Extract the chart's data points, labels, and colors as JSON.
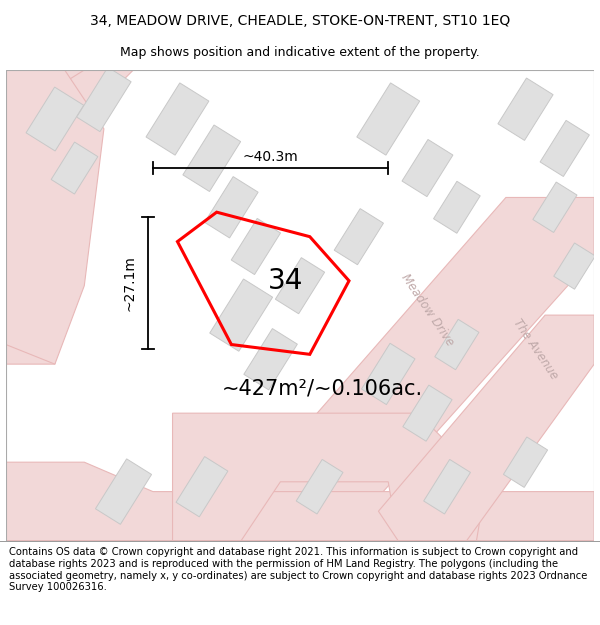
{
  "title_line1": "34, MEADOW DRIVE, CHEADLE, STOKE-ON-TRENT, ST10 1EQ",
  "title_line2": "Map shows position and indicative extent of the property.",
  "area_text": "~427m²/~0.106ac.",
  "label_34": "34",
  "dim_width": "~40.3m",
  "dim_height": "~27.1m",
  "street_meadow": "Meadow Drive",
  "street_avenue": "The Avenue",
  "footer_text": "Contains OS data © Crown copyright and database right 2021. This information is subject to Crown copyright and database rights 2023 and is reproduced with the permission of HM Land Registry. The polygons (including the associated geometry, namely x, y co-ordinates) are subject to Crown copyright and database rights 2023 Ordnance Survey 100026316.",
  "map_bg": "#ffffff",
  "road_fill": "#f5dada",
  "road_edge": "#e8b8b8",
  "building_fill": "#e0e0e0",
  "building_edge": "#c8c8c8",
  "plot_edge": "#ff0000",
  "dim_color": "#000000",
  "street_color": "#c0aaaa",
  "title_fontsize": 10,
  "subtitle_fontsize": 9,
  "area_fontsize": 15,
  "label_fontsize": 20,
  "dim_fontsize": 10,
  "street_fontsize": 8.5,
  "footer_fontsize": 7.2
}
